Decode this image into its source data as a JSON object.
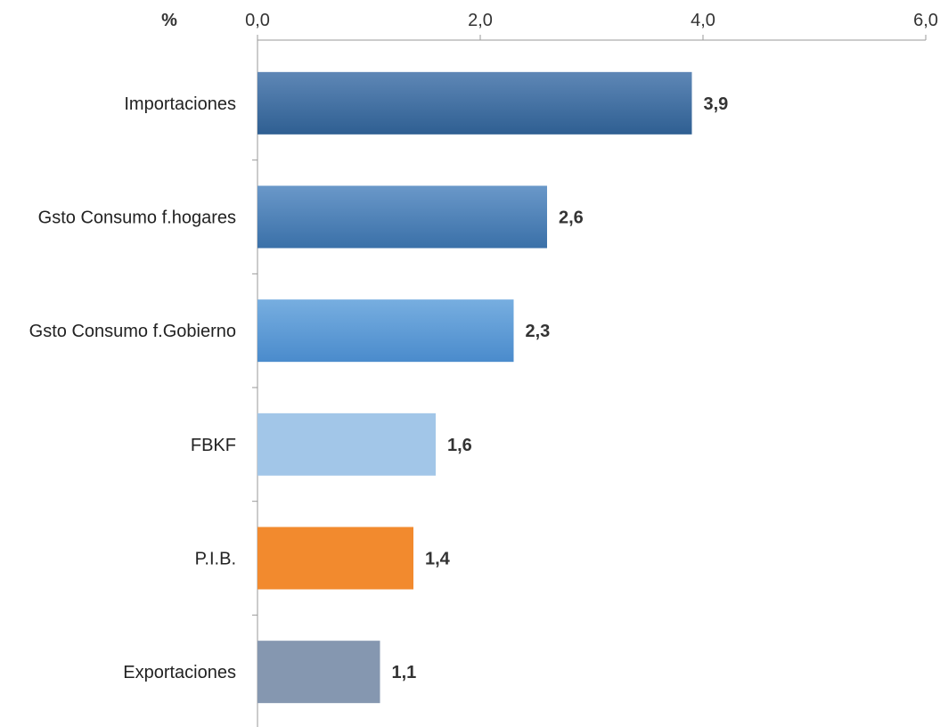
{
  "chart_data": {
    "type": "bar",
    "orientation": "horizontal",
    "unit_label": "%",
    "categories": [
      "Importaciones",
      "Gsto Consumo f.hogares",
      "Gsto Consumo f.Gobierno",
      "FBKF",
      "P.I.B.",
      "Exportaciones"
    ],
    "values": [
      3.9,
      2.6,
      2.3,
      1.6,
      1.4,
      1.1
    ],
    "value_labels": [
      "3,9",
      "2,6",
      "2,3",
      "1,6",
      "1,4",
      "1,1"
    ],
    "bar_colors": [
      [
        "#5e87b6",
        "#2f5f92"
      ],
      [
        "#6a98c9",
        "#3a70a8"
      ],
      [
        "#77aee0",
        "#4a8bcc"
      ],
      [
        "#a2c6e8",
        "#a2c6e8"
      ],
      [
        "#f28a2e",
        "#f28a2e"
      ],
      [
        "#8597b0",
        "#8597b0"
      ]
    ],
    "xlim": [
      0,
      6
    ],
    "xticks": [
      0,
      2,
      4,
      6
    ],
    "xtick_labels": [
      "0,0",
      "2,0",
      "4,0",
      "6,0"
    ],
    "axis_position": "top",
    "grid": false,
    "legend": "none"
  }
}
